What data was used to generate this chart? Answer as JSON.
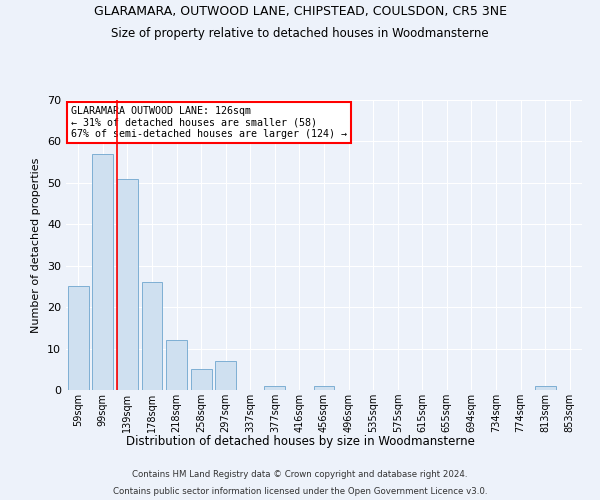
{
  "title": "GLARAMARA, OUTWOOD LANE, CHIPSTEAD, COULSDON, CR5 3NE",
  "subtitle": "Size of property relative to detached houses in Woodmansterne",
  "xlabel": "Distribution of detached houses by size in Woodmansterne",
  "ylabel": "Number of detached properties",
  "categories": [
    "59sqm",
    "99sqm",
    "139sqm",
    "178sqm",
    "218sqm",
    "258sqm",
    "297sqm",
    "337sqm",
    "377sqm",
    "416sqm",
    "456sqm",
    "496sqm",
    "535sqm",
    "575sqm",
    "615sqm",
    "655sqm",
    "694sqm",
    "734sqm",
    "774sqm",
    "813sqm",
    "853sqm"
  ],
  "values": [
    25,
    57,
    51,
    26,
    12,
    5,
    7,
    0,
    1,
    0,
    1,
    0,
    0,
    0,
    0,
    0,
    0,
    0,
    0,
    1,
    0
  ],
  "bar_color": "#cfe0f0",
  "bar_edge_color": "#7eafd4",
  "redline_x": 1.58,
  "annotation_title": "GLARAMARA OUTWOOD LANE: 126sqm",
  "annotation_line1": "← 31% of detached houses are smaller (58)",
  "annotation_line2": "67% of semi-detached houses are larger (124) →",
  "ylim": [
    0,
    70
  ],
  "title_fontsize": 9,
  "subtitle_fontsize": 8.5,
  "footer1": "Contains HM Land Registry data © Crown copyright and database right 2024.",
  "footer2": "Contains public sector information licensed under the Open Government Licence v3.0.",
  "background_color": "#edf2fa",
  "grid_color": "#ffffff"
}
